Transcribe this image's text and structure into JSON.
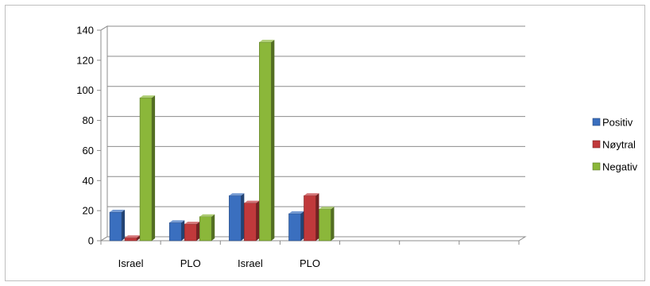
{
  "chart_data": {
    "type": "bar",
    "title": "",
    "xlabel": "",
    "ylabel": "",
    "categories": [
      "Israel",
      "PLO",
      "Israel",
      "PLO",
      "",
      "",
      ""
    ],
    "series": [
      {
        "name": "Positiv",
        "values": [
          19,
          12,
          30,
          18,
          null,
          null,
          null
        ],
        "color": "#3a6fbf"
      },
      {
        "name": "Nøytral",
        "values": [
          2,
          11,
          25,
          30,
          null,
          null,
          null
        ],
        "color": "#c0393b"
      },
      {
        "name": "Negativ",
        "values": [
          95,
          16,
          132,
          21,
          null,
          null,
          null
        ],
        "color": "#8bb73a"
      }
    ],
    "ylim": [
      0,
      140
    ],
    "yticks": [
      0,
      20,
      40,
      60,
      80,
      100,
      120,
      140
    ],
    "grid": true,
    "legend_position": "right",
    "style": "3d-clustered-column"
  }
}
